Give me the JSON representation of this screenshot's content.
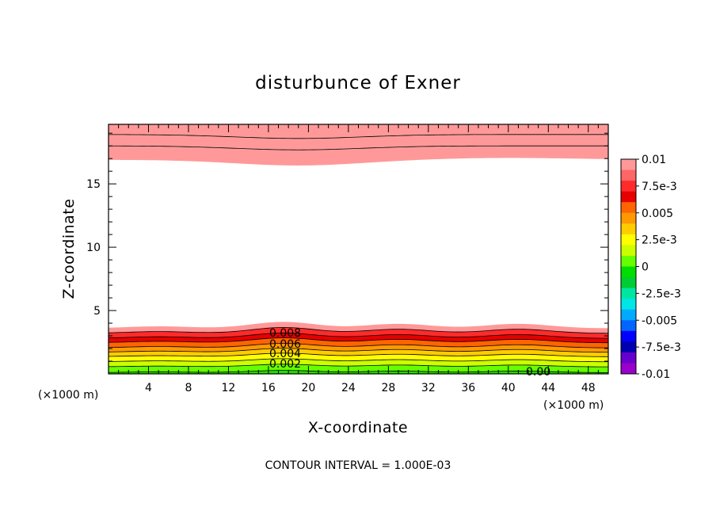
{
  "chart_data": {
    "type": "contour",
    "title": "disturbunce of Exner",
    "xlabel": "X-coordinate",
    "ylabel": "Z-coordinate",
    "x_unit_label": "(×1000 m)",
    "x_unit_label_right": "(×1000 m)",
    "xlim": [
      0,
      50
    ],
    "ylim": [
      0,
      19.7
    ],
    "x_ticks": [
      4,
      8,
      12,
      16,
      20,
      24,
      28,
      32,
      36,
      40,
      44,
      48
    ],
    "y_ticks": [
      5,
      10,
      15
    ],
    "contour_interval_note": "CONTOUR INTERVAL = 1.000E-03",
    "contour_labels": [
      "0.008",
      "0.006",
      "0.004",
      "0.002",
      "0.00"
    ],
    "colorbar": {
      "range": [
        -0.01,
        0.01
      ],
      "tick_labels": [
        "0.01",
        "7.5e-3",
        "0.005",
        "2.5e-3",
        "0",
        "-2.5e-3",
        "-0.005",
        "-7.5e-3",
        "-0.01"
      ],
      "tick_values": [
        0.01,
        0.0075,
        0.005,
        0.0025,
        0,
        -0.0025,
        -0.005,
        -0.0075,
        -0.01
      ],
      "colors_top_to_bottom": [
        "#ff9999",
        "#ff6666",
        "#ff2b2b",
        "#e60000",
        "#ff6400",
        "#ff9900",
        "#ffcc00",
        "#ffff00",
        "#ccff00",
        "#66ff00",
        "#00dd00",
        "#00cc33",
        "#00e6a0",
        "#00e6e6",
        "#00aaff",
        "#0066ff",
        "#0000ff",
        "#0000b0",
        "#6600cc",
        "#9900cc"
      ]
    },
    "lower_field": {
      "description_levels": [
        0.0,
        0.001,
        0.002,
        0.003,
        0.004,
        0.005,
        0.006,
        0.007,
        0.008,
        0.009
      ],
      "level_heights_km": [
        0.1,
        0.55,
        0.95,
        1.35,
        1.7,
        2.05,
        2.45,
        2.8,
        3.2,
        3.6
      ],
      "level_colors": [
        "#22dd00",
        "#66ff00",
        "#ccff00",
        "#ffff00",
        "#ffcc00",
        "#ff9900",
        "#ff6400",
        "#e60000",
        "#ff2b2b",
        "#ff9999"
      ],
      "bump_centers_km": [
        5,
        17.5,
        29,
        41
      ],
      "bump_amplitudes_km": [
        0.15,
        0.5,
        0.35,
        0.35
      ]
    },
    "upper_field": {
      "bands_top_down": [
        {
          "value": 0.009,
          "color": "#ff6666",
          "bottom_km": 18.0
        },
        {
          "value": 0.01,
          "color": "#ff9999",
          "bottom_km": 16.9
        }
      ],
      "dip_center_km": 19,
      "dip_depth_km": 0.45
    }
  }
}
